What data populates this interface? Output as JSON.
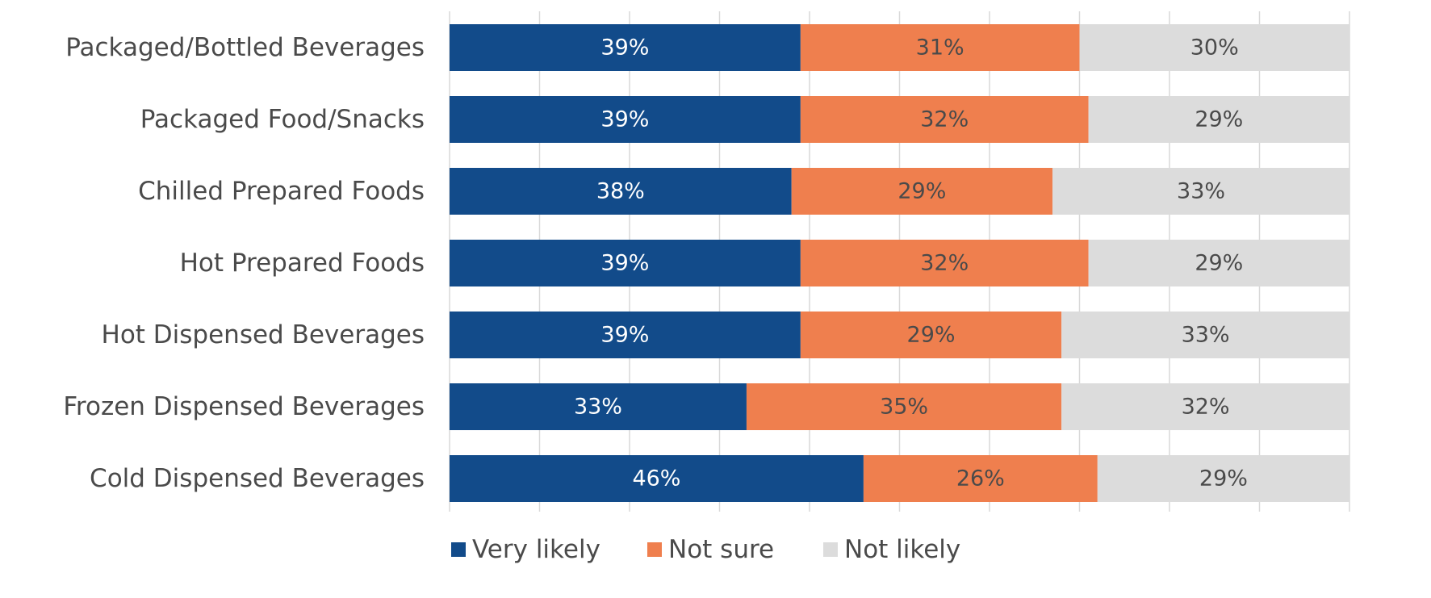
{
  "chart_data": {
    "type": "bar",
    "orientation": "horizontal",
    "stacked": true,
    "categories": [
      "Packaged/Bottled Beverages",
      "Packaged Food/Snacks",
      "Chilled Prepared Foods",
      "Hot Prepared Foods",
      "Hot Dispensed Beverages",
      "Frozen Dispensed Beverages",
      "Cold Dispensed Beverages"
    ],
    "series": [
      {
        "name": "Very likely",
        "color": "#124b8a",
        "label_color": "#ffffff",
        "values": [
          39,
          39,
          38,
          39,
          39,
          33,
          46
        ],
        "labels": [
          "39%",
          "39%",
          "38%",
          "39%",
          "39%",
          "33%",
          "46%"
        ]
      },
      {
        "name": "Not sure",
        "color": "#ef7f4e",
        "label_color": "#4a4a4a",
        "values": [
          31,
          32,
          29,
          32,
          29,
          35,
          26
        ],
        "labels": [
          "31%",
          "32%",
          "29%",
          "32%",
          "29%",
          "35%",
          "26%"
        ]
      },
      {
        "name": "Not likely",
        "color": "#dcdcdc",
        "label_color": "#4a4a4a",
        "values": [
          30,
          29,
          33,
          29,
          33,
          32,
          29
        ],
        "labels": [
          "30%",
          "29%",
          "33%",
          "29%",
          "33%",
          "32%",
          "29%"
        ]
      }
    ],
    "xlim": [
      0,
      100
    ],
    "grid": true,
    "legend_position": "bottom",
    "title": "",
    "xlabel": "",
    "ylabel": ""
  }
}
